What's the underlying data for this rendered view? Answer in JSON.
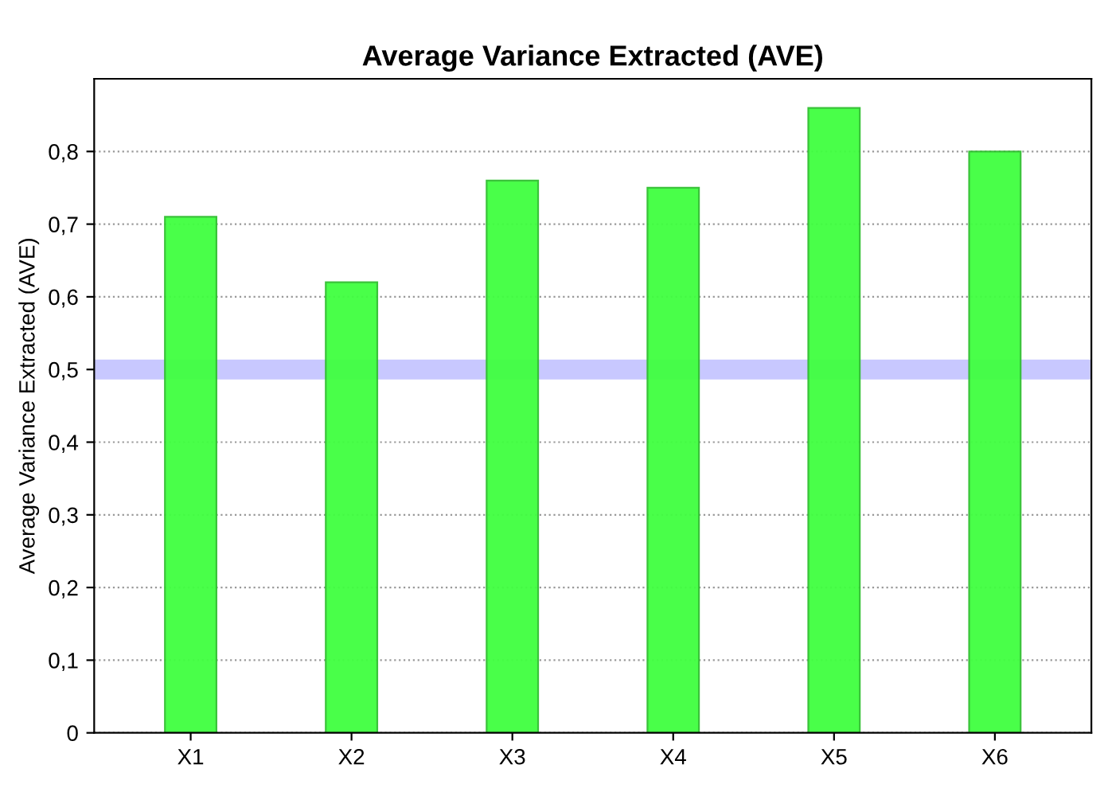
{
  "chart_data": {
    "type": "bar",
    "title": "Average Variance Extracted (AVE)",
    "ylabel": "Average Variance Extracted (AVE)",
    "categories": [
      "X1",
      "X2",
      "X3",
      "X4",
      "X5",
      "X6"
    ],
    "values": [
      0.71,
      0.62,
      0.76,
      0.75,
      0.86,
      0.8
    ],
    "color": "#40ff40",
    "ylim": [
      0,
      0.9
    ],
    "yticks": [
      0,
      {
        "value": 0.1,
        "label": "0,1"
      },
      {
        "value": 0.2,
        "label": "0,2"
      },
      {
        "value": 0.3,
        "label": "0,3"
      },
      {
        "value": 0.4,
        "label": "0,4"
      },
      {
        "value": 0.5,
        "label": "0,5"
      },
      {
        "value": 0.6,
        "label": "0,6"
      },
      {
        "value": 0.7,
        "label": "0,7"
      },
      {
        "value": 0.8,
        "label": "0,8"
      }
    ],
    "grid": "y",
    "ref_lines": [
      {
        "axis": "y",
        "value": 0.5,
        "color": "#c8c8ff"
      }
    ]
  }
}
